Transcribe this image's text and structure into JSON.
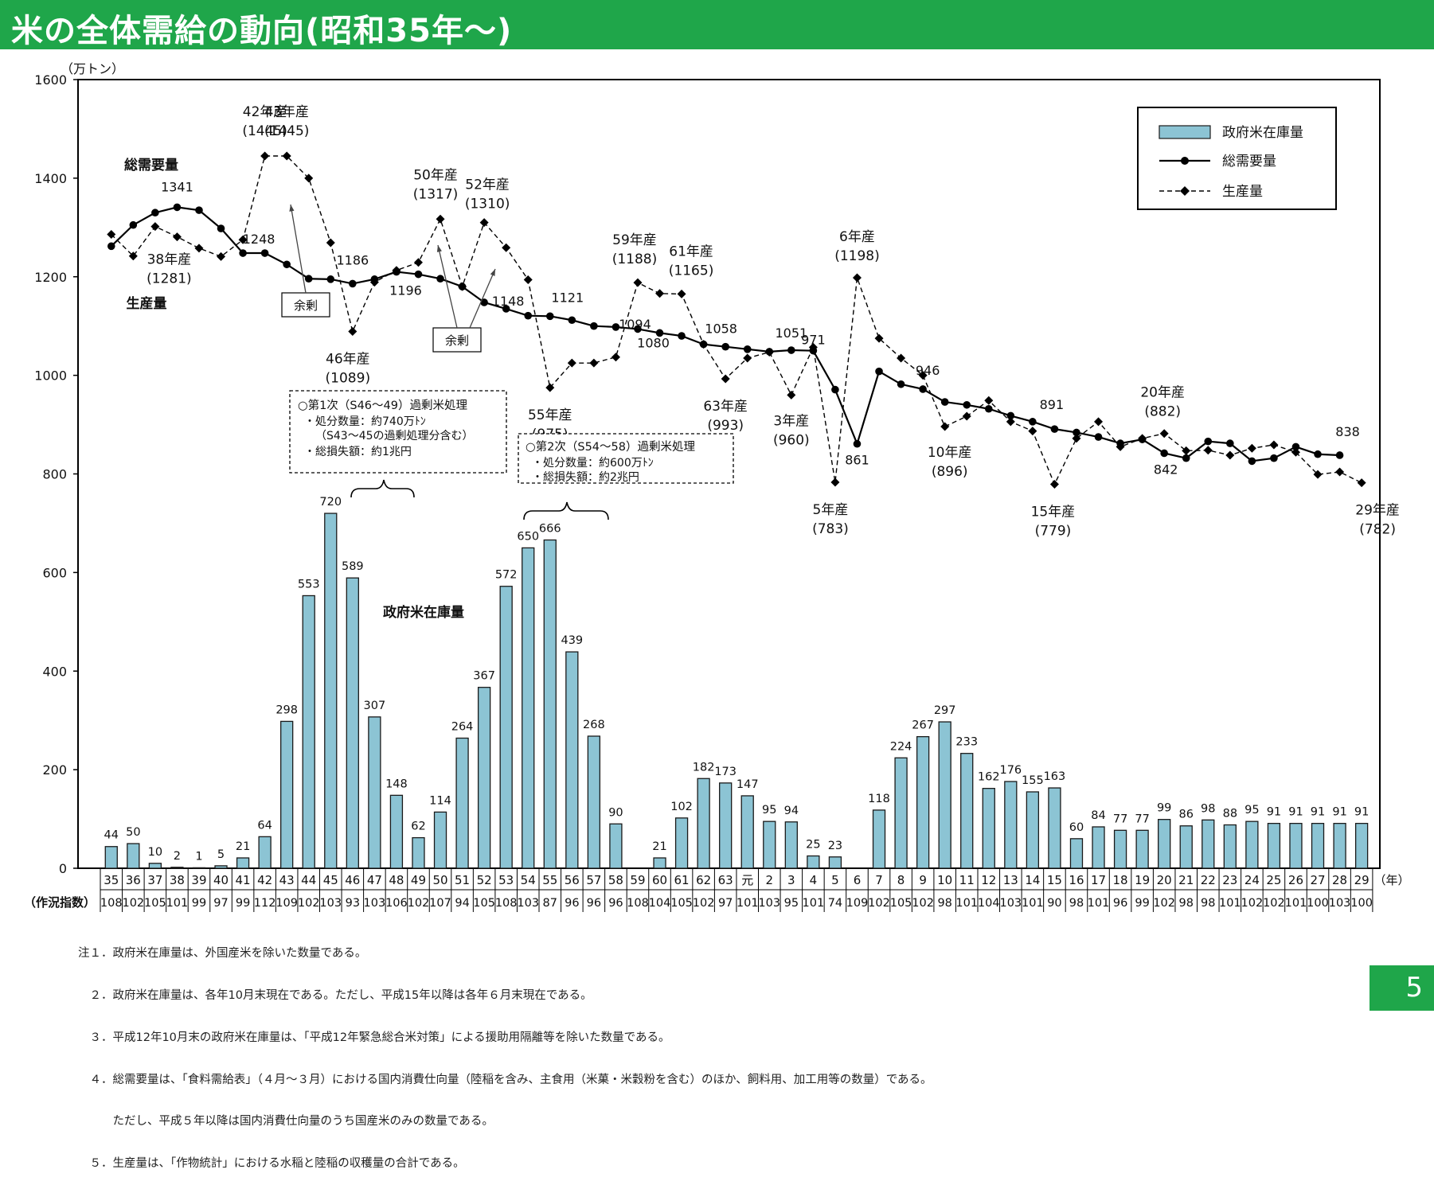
{
  "title": "米の全体需給の動向(昭和35年～)",
  "page_number": "5",
  "unit_label": "（万トン）",
  "year_axis_label": "（年）",
  "index_row_label": "（作況指数）",
  "legend": {
    "stock": "政府米在庫量",
    "demand": "総需要量",
    "production": "生産量"
  },
  "series_labels": {
    "demand": "総需要量",
    "production": "生産量",
    "stock": "政府米在庫量"
  },
  "surplus_label": "余剰",
  "box1": {
    "title": "○第1次（S46～49）過剰米処理",
    "line1": "・処分数量：約740万ﾄﾝ",
    "line2": "（S43～45の過剰処理分含む）",
    "line3": "・総損失額：約1兆円"
  },
  "box2": {
    "title": "○第2次（S54～58）過剰米処理",
    "line1": "・処分数量：約600万ﾄﾝ",
    "line2": "・総損失額：約2兆円"
  },
  "annotations": [
    {
      "i": 7,
      "lines": [
        "42年産",
        "(1445)"
      ]
    },
    {
      "i": 8,
      "lines": [
        "43年産",
        "(1445)"
      ]
    },
    {
      "i": 3,
      "lines": [
        "38年産",
        "(1281)"
      ]
    },
    {
      "i": 11,
      "lines": [
        "46年産",
        "(1089)"
      ]
    },
    {
      "i": 15,
      "lines": [
        "50年産",
        "(1317)"
      ]
    },
    {
      "i": 17,
      "lines": [
        "52年産",
        "(1310)"
      ]
    },
    {
      "i": 20,
      "lines": [
        "55年産",
        "(975)"
      ]
    },
    {
      "i": 24,
      "lines": [
        "59年産",
        "(1188)"
      ]
    },
    {
      "i": 26,
      "lines": [
        "61年産",
        "(1165)"
      ]
    },
    {
      "i": 28,
      "lines": [
        "63年産",
        "(993)"
      ]
    },
    {
      "i": 31,
      "lines": [
        "3年産",
        "(960)"
      ]
    },
    {
      "i": 33,
      "lines": [
        "5年産",
        "(783)"
      ]
    },
    {
      "i": 34,
      "lines": [
        "6年産",
        "(1198)"
      ]
    },
    {
      "i": 38,
      "lines": [
        "10年産",
        "(896)"
      ]
    },
    {
      "i": 43,
      "lines": [
        "15年産",
        "(779)"
      ]
    },
    {
      "i": 48,
      "lines": [
        "20年産",
        "(882)"
      ]
    },
    {
      "i": 57,
      "lines": [
        "29年産",
        "(782)"
      ]
    }
  ],
  "demand_labels": [
    {
      "i": 3,
      "text": "1341"
    },
    {
      "i": 6,
      "text": "1248"
    },
    {
      "i": 11,
      "text": "1186"
    },
    {
      "i": 14,
      "text": "1196"
    },
    {
      "i": 17,
      "text": "1148"
    },
    {
      "i": 20,
      "text": "1121"
    },
    {
      "i": 23,
      "text": "1094"
    },
    {
      "i": 25,
      "text": "1080"
    },
    {
      "i": 27,
      "text": "1058"
    },
    {
      "i": 31,
      "text": "1051"
    },
    {
      "i": 32,
      "text": "971"
    },
    {
      "i": 34,
      "text": "861"
    },
    {
      "i": 37,
      "text": "946"
    },
    {
      "i": 42,
      "text": "891"
    },
    {
      "i": 48,
      "text": "842"
    },
    {
      "i": 56,
      "text": "838"
    }
  ],
  "notes": [
    "注１．政府米在庫量は、外国産米を除いた数量である。",
    "　２．政府米在庫量は、各年10月末現在である。ただし、平成15年以降は各年６月末現在である。",
    "　３．平成12年10月末の政府米在庫量は、「平成12年緊急総合米対策」による援助用隔離等を除いた数量である。",
    "　４．総需要量は、「食料需給表」（４月～３月）における国内消費仕向量（陸稲を含み、主食用（米菓・米穀粉を含む）のほか、飼料用、加工用等の数量）である。",
    "　　　ただし、平成５年以降は国内消費仕向量のうち国産米のみの数量である。",
    "　５．生産量は、「作物統計」における水稲と陸稲の収穫量の合計である。"
  ],
  "colors": {
    "header_bg": "#1fa64a",
    "bar_fill": "#8cc4d4",
    "bar_stroke": "#1a1a1a",
    "line": "#000000"
  },
  "chart_data": {
    "type": "bar+line",
    "ylim": [
      0,
      1600
    ],
    "yticks": [
      0,
      200,
      400,
      600,
      800,
      1000,
      1200,
      1400,
      1600
    ],
    "years": [
      "35",
      "36",
      "37",
      "38",
      "39",
      "40",
      "41",
      "42",
      "43",
      "44",
      "45",
      "46",
      "47",
      "48",
      "49",
      "50",
      "51",
      "52",
      "53",
      "54",
      "55",
      "56",
      "57",
      "58",
      "59",
      "60",
      "61",
      "62",
      "63",
      "元",
      "2",
      "3",
      "4",
      "5",
      "6",
      "7",
      "8",
      "9",
      "10",
      "11",
      "12",
      "13",
      "14",
      "15",
      "16",
      "17",
      "18",
      "19",
      "20",
      "21",
      "22",
      "23",
      "24",
      "25",
      "26",
      "27",
      "28",
      "29"
    ],
    "crop_index": [
      "108",
      "102",
      "105",
      "101",
      "99",
      "97",
      "99",
      "112",
      "109",
      "102",
      "103",
      "93",
      "103",
      "106",
      "102",
      "107",
      "94",
      "105",
      "108",
      "103",
      "87",
      "96",
      "96",
      "96",
      "108",
      "104",
      "105",
      "102",
      "97",
      "101",
      "103",
      "95",
      "101",
      "74",
      "109",
      "102",
      "105",
      "102",
      "98",
      "101",
      "104",
      "103",
      "101",
      "90",
      "98",
      "101",
      "96",
      "99",
      "102",
      "98",
      "98",
      "101",
      "102",
      "102",
      "101",
      "100",
      "103",
      "100"
    ],
    "series": [
      {
        "name": "政府米在庫量",
        "kind": "bar",
        "values": [
          44,
          50,
          10,
          2,
          1,
          5,
          21,
          64,
          298,
          553,
          720,
          589,
          307,
          148,
          62,
          114,
          264,
          367,
          572,
          650,
          666,
          439,
          268,
          90,
          null,
          21,
          102,
          182,
          173,
          147,
          95,
          94,
          25,
          23,
          null,
          118,
          224,
          267,
          297,
          233,
          162,
          176,
          155,
          163,
          60,
          84,
          77,
          77,
          99,
          86,
          98,
          88,
          95,
          91,
          91,
          91,
          91,
          91
        ]
      },
      {
        "name": "総需要量",
        "kind": "line",
        "values": [
          1262,
          1305,
          1330,
          1341,
          1335,
          1298,
          1248,
          1248,
          1225,
          1196,
          1195,
          1186,
          1195,
          1210,
          1205,
          1196,
          1180,
          1148,
          1135,
          1121,
          1120,
          1112,
          1100,
          1098,
          1094,
          1086,
          1080,
          1063,
          1058,
          1053,
          1048,
          1051,
          1050,
          971,
          861,
          1008,
          982,
          972,
          946,
          940,
          932,
          918,
          906,
          891,
          884,
          875,
          862,
          870,
          842,
          832,
          866,
          862,
          826,
          832,
          855,
          840,
          838,
          null
        ]
      },
      {
        "name": "生産量",
        "kind": "line",
        "values": [
          1286,
          1242,
          1302,
          1281,
          1258,
          1241,
          1275,
          1445,
          1445,
          1400,
          1269,
          1089,
          1189,
          1213,
          1229,
          1317,
          1180,
          1310,
          1259,
          1194,
          975,
          1025,
          1025,
          1037,
          1188,
          1166,
          1165,
          1063,
          993,
          1035,
          1047,
          960,
          1057,
          783,
          1198,
          1075,
          1035,
          1000,
          896,
          917,
          949,
          906,
          887,
          779,
          872,
          906,
          855,
          872,
          882,
          847,
          848,
          838,
          852,
          859,
          844,
          799,
          804,
          782
        ]
      }
    ]
  }
}
